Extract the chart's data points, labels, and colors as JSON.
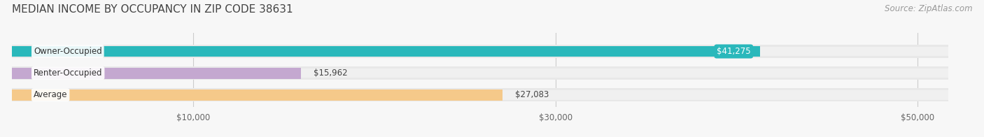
{
  "title": "MEDIAN INCOME BY OCCUPANCY IN ZIP CODE 38631",
  "source": "Source: ZipAtlas.com",
  "categories": [
    "Owner-Occupied",
    "Renter-Occupied",
    "Average"
  ],
  "values": [
    41275,
    15962,
    27083
  ],
  "bar_colors": [
    "#2ab8bb",
    "#c4a8d0",
    "#f5c98a"
  ],
  "bar_bg_colors": [
    "#ebebeb",
    "#ebebeb",
    "#ebebeb"
  ],
  "value_labels": [
    "$41,275",
    "$15,962",
    "$27,083"
  ],
  "value_in_bar": [
    true,
    false,
    false
  ],
  "x_ticks": [
    10000,
    30000,
    50000
  ],
  "x_tick_labels": [
    "$10,000",
    "$30,000",
    "$50,000"
  ],
  "xlim_max": 53000,
  "title_fontsize": 11,
  "source_fontsize": 8.5,
  "label_fontsize": 8.5,
  "value_fontsize": 8.5,
  "background_color": "#f7f7f7",
  "bar_height": 0.62,
  "bar_gap": 0.38
}
